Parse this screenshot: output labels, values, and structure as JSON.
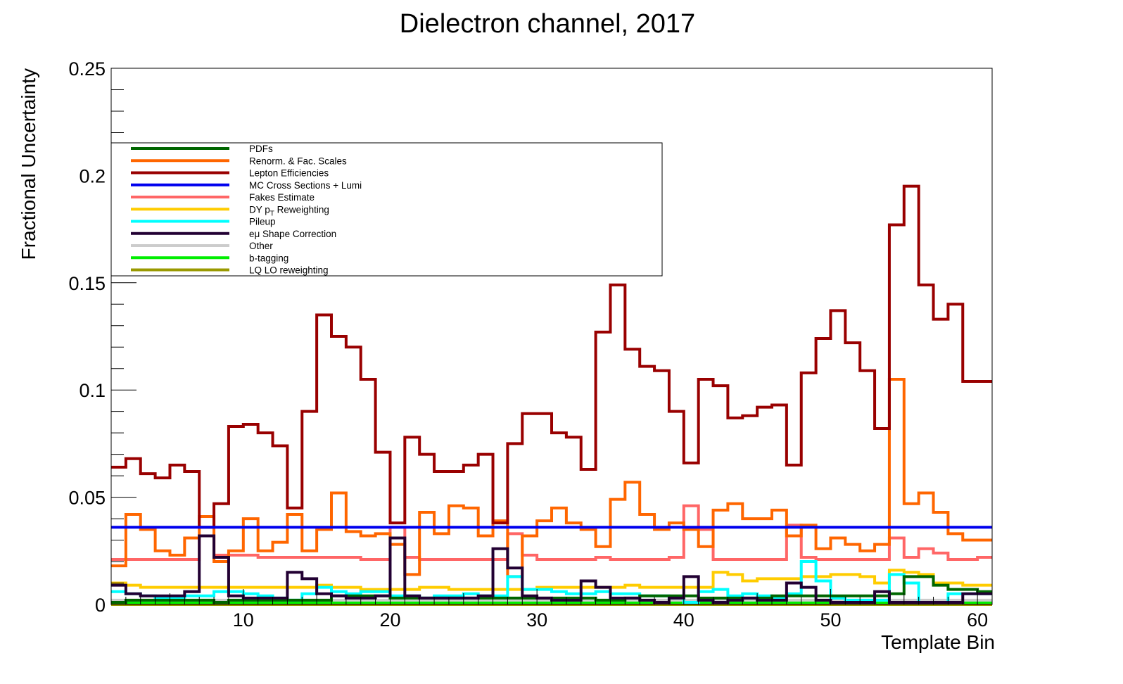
{
  "chart_data": {
    "type": "line",
    "style": "step",
    "title": "Dielectron channel, 2017",
    "xlabel": "Template Bin",
    "ylabel": "Fractional Uncertainty",
    "xlim": [
      1,
      61
    ],
    "ylim": [
      0,
      0.25
    ],
    "xticks": [
      10,
      20,
      30,
      40,
      50,
      60
    ],
    "xtick_labels": [
      "10",
      "20",
      "30",
      "40",
      "50",
      "60"
    ],
    "yticks": [
      0,
      0.05,
      0.1,
      0.15,
      0.2,
      0.25
    ],
    "ytick_labels": [
      "0",
      "0.05",
      "0.1",
      "0.15",
      "0.2",
      "0.25"
    ],
    "grid": false,
    "legend_position": "upper-left",
    "series": [
      {
        "name": "PDFs",
        "color": "#006600",
        "values": [
          0.001,
          0.002,
          0.002,
          0.002,
          0.002,
          0.002,
          0.002,
          0.001,
          0.002,
          0.002,
          0.002,
          0.002,
          0.002,
          0.002,
          0.002,
          0.004,
          0.004,
          0.004,
          0.004,
          0.003,
          0.003,
          0.003,
          0.003,
          0.003,
          0.003,
          0.003,
          0.003,
          0.003,
          0.003,
          0.003,
          0.003,
          0.003,
          0.003,
          0.002,
          0.002,
          0.003,
          0.004,
          0.004,
          0.004,
          0.004,
          0.003,
          0.003,
          0.003,
          0.003,
          0.003,
          0.004,
          0.004,
          0.004,
          0.004,
          0.004,
          0.004,
          0.004,
          0.004,
          0.005,
          0.013,
          0.013,
          0.009,
          0.007,
          0.007,
          0.006
        ]
      },
      {
        "name": "Renorm. & Fac. Scales",
        "color": "#ff6600",
        "values": [
          0.018,
          0.042,
          0.035,
          0.025,
          0.023,
          0.031,
          0.041,
          0.02,
          0.025,
          0.04,
          0.025,
          0.029,
          0.042,
          0.025,
          0.035,
          0.052,
          0.034,
          0.032,
          0.033,
          0.028,
          0.014,
          0.043,
          0.033,
          0.046,
          0.045,
          0.032,
          0.039,
          0.013,
          0.032,
          0.039,
          0.045,
          0.038,
          0.035,
          0.027,
          0.049,
          0.057,
          0.042,
          0.035,
          0.038,
          0.035,
          0.027,
          0.044,
          0.047,
          0.04,
          0.04,
          0.044,
          0.032,
          0.037,
          0.026,
          0.031,
          0.028,
          0.025,
          0.028,
          0.105,
          0.047,
          0.052,
          0.043,
          0.033,
          0.03,
          0.03
        ]
      },
      {
        "name": "Lepton Efficiencies",
        "color": "#990000",
        "values": [
          0.064,
          0.068,
          0.061,
          0.059,
          0.065,
          0.062,
          0.036,
          0.047,
          0.083,
          0.084,
          0.08,
          0.074,
          0.045,
          0.09,
          0.135,
          0.125,
          0.12,
          0.105,
          0.071,
          0.038,
          0.078,
          0.07,
          0.062,
          0.062,
          0.065,
          0.07,
          0.038,
          0.075,
          0.089,
          0.089,
          0.08,
          0.078,
          0.063,
          0.127,
          0.149,
          0.119,
          0.111,
          0.109,
          0.09,
          0.066,
          0.105,
          0.102,
          0.087,
          0.088,
          0.092,
          0.093,
          0.065,
          0.108,
          0.124,
          0.137,
          0.122,
          0.109,
          0.082,
          0.177,
          0.195,
          0.149,
          0.133,
          0.14,
          0.104,
          0.104
        ]
      },
      {
        "name": "MC Cross Sections + Lumi",
        "color": "#0000ee",
        "values": [
          0.036,
          0.036,
          0.036,
          0.036,
          0.036,
          0.036,
          0.036,
          0.036,
          0.036,
          0.036,
          0.036,
          0.036,
          0.036,
          0.036,
          0.036,
          0.036,
          0.036,
          0.036,
          0.036,
          0.036,
          0.036,
          0.036,
          0.036,
          0.036,
          0.036,
          0.036,
          0.036,
          0.036,
          0.036,
          0.036,
          0.036,
          0.036,
          0.036,
          0.036,
          0.036,
          0.036,
          0.036,
          0.036,
          0.036,
          0.036,
          0.036,
          0.036,
          0.036,
          0.036,
          0.036,
          0.036,
          0.036,
          0.036,
          0.036,
          0.036,
          0.036,
          0.036,
          0.036,
          0.036,
          0.036,
          0.036,
          0.036,
          0.036,
          0.036,
          0.036
        ]
      },
      {
        "name": "Fakes Estimate",
        "color": "#ff6666",
        "values": [
          0.021,
          0.021,
          0.021,
          0.021,
          0.021,
          0.021,
          0.032,
          0.023,
          0.023,
          0.023,
          0.022,
          0.022,
          0.022,
          0.022,
          0.022,
          0.022,
          0.022,
          0.021,
          0.021,
          0.036,
          0.022,
          0.021,
          0.021,
          0.021,
          0.021,
          0.021,
          0.021,
          0.033,
          0.023,
          0.021,
          0.021,
          0.021,
          0.021,
          0.022,
          0.021,
          0.021,
          0.021,
          0.021,
          0.022,
          0.046,
          0.035,
          0.021,
          0.021,
          0.021,
          0.021,
          0.021,
          0.037,
          0.022,
          0.021,
          0.021,
          0.021,
          0.021,
          0.021,
          0.031,
          0.022,
          0.026,
          0.024,
          0.021,
          0.021,
          0.022
        ]
      },
      {
        "name": "DY p_T Reweighting",
        "color": "#ffcc00",
        "values": [
          0.01,
          0.009,
          0.008,
          0.008,
          0.008,
          0.008,
          0.008,
          0.008,
          0.008,
          0.008,
          0.008,
          0.008,
          0.008,
          0.008,
          0.009,
          0.008,
          0.008,
          0.007,
          0.007,
          0.007,
          0.007,
          0.008,
          0.008,
          0.007,
          0.007,
          0.007,
          0.007,
          0.007,
          0.007,
          0.008,
          0.008,
          0.008,
          0.008,
          0.008,
          0.008,
          0.009,
          0.008,
          0.008,
          0.008,
          0.008,
          0.008,
          0.015,
          0.014,
          0.011,
          0.012,
          0.012,
          0.012,
          0.013,
          0.013,
          0.014,
          0.014,
          0.013,
          0.01,
          0.016,
          0.015,
          0.014,
          0.01,
          0.01,
          0.009,
          0.009
        ]
      },
      {
        "name": "Pileup",
        "color": "#00ffff",
        "values": [
          0.006,
          0.005,
          0.004,
          0.003,
          0.003,
          0.004,
          0.004,
          0.006,
          0.006,
          0.005,
          0.004,
          0.003,
          0.002,
          0.005,
          0.008,
          0.006,
          0.005,
          0.006,
          0.006,
          0.004,
          0.004,
          0.003,
          0.004,
          0.004,
          0.005,
          0.004,
          0.004,
          0.013,
          0.007,
          0.007,
          0.006,
          0.005,
          0.005,
          0.006,
          0.005,
          0.005,
          0.004,
          0.004,
          0.003,
          0.001,
          0.006,
          0.007,
          0.004,
          0.005,
          0.004,
          0.003,
          0.005,
          0.02,
          0.011,
          0.003,
          0.002,
          0.002,
          0.002,
          0.014,
          0.01,
          0.001,
          0.001,
          0.005,
          0.005,
          0.005
        ]
      },
      {
        "name": "eμ Shape Correction",
        "color": "#220033",
        "values": [
          0.009,
          0.005,
          0.004,
          0.004,
          0.004,
          0.006,
          0.032,
          0.022,
          0.004,
          0.003,
          0.003,
          0.003,
          0.015,
          0.012,
          0.005,
          0.004,
          0.003,
          0.003,
          0.004,
          0.031,
          0.004,
          0.003,
          0.003,
          0.003,
          0.003,
          0.004,
          0.026,
          0.017,
          0.004,
          0.003,
          0.002,
          0.002,
          0.011,
          0.008,
          0.003,
          0.003,
          0.002,
          0.001,
          0.003,
          0.013,
          0.002,
          0.001,
          0.002,
          0.003,
          0.002,
          0.002,
          0.01,
          0.008,
          0.002,
          0.001,
          0.001,
          0.001,
          0.006,
          0.001,
          0.001,
          0.001,
          0.001,
          0.001,
          0.005,
          0.005
        ]
      },
      {
        "name": "Other",
        "color": "#cccccc",
        "values": [
          0.002,
          0.002,
          0.002,
          0.002,
          0.002,
          0.002,
          0.002,
          0.002,
          0.002,
          0.002,
          0.002,
          0.002,
          0.002,
          0.002,
          0.002,
          0.002,
          0.002,
          0.002,
          0.002,
          0.002,
          0.002,
          0.002,
          0.002,
          0.002,
          0.002,
          0.002,
          0.002,
          0.002,
          0.002,
          0.002,
          0.002,
          0.002,
          0.002,
          0.002,
          0.002,
          0.002,
          0.002,
          0.002,
          0.002,
          0.002,
          0.002,
          0.002,
          0.002,
          0.002,
          0.002,
          0.002,
          0.002,
          0.002,
          0.002,
          0.002,
          0.002,
          0.002,
          0.002,
          0.002,
          0.002,
          0.002,
          0.002,
          0.002,
          0.002,
          0.002
        ]
      },
      {
        "name": "b-tagging",
        "color": "#00ee00",
        "values": [
          0.001,
          0.001,
          0.001,
          0.001,
          0.001,
          0.001,
          0.001,
          0.001,
          0.001,
          0.001,
          0.001,
          0.001,
          0.001,
          0.001,
          0.001,
          0.001,
          0.001,
          0.001,
          0.001,
          0.001,
          0.001,
          0.001,
          0.001,
          0.001,
          0.001,
          0.001,
          0.001,
          0.001,
          0.001,
          0.001,
          0.001,
          0.001,
          0.001,
          0.001,
          0.001,
          0.001,
          0.001,
          0.001,
          0.001,
          0.001,
          0.001,
          0.001,
          0.001,
          0.001,
          0.001,
          0.001,
          0.001,
          0.001,
          0.001,
          0.001,
          0.001,
          0.001,
          0.001,
          0.001,
          0.001,
          0.001,
          0.001,
          0.001,
          0.001,
          0.001
        ]
      },
      {
        "name": "LQ LO reweighting",
        "color": "#999900",
        "values": [
          0,
          0,
          0,
          0,
          0,
          0,
          0,
          0,
          0,
          0,
          0,
          0,
          0,
          0,
          0,
          0,
          0,
          0,
          0,
          0,
          0,
          0,
          0,
          0,
          0,
          0,
          0,
          0,
          0,
          0,
          0,
          0,
          0,
          0,
          0,
          0,
          0,
          0,
          0,
          0,
          0,
          0,
          0,
          0,
          0,
          0,
          0,
          0,
          0,
          0,
          0,
          0,
          0,
          0,
          0,
          0,
          0,
          0,
          0,
          0
        ]
      }
    ],
    "legend": [
      {
        "label": "PDFs",
        "color": "#006600"
      },
      {
        "label": "Renorm. & Fac. Scales",
        "color": "#ff6600"
      },
      {
        "label": "Lepton Efficiencies",
        "color": "#990000"
      },
      {
        "label": "MC Cross Sections + Lumi",
        "color": "#0000ee"
      },
      {
        "label": "Fakes Estimate",
        "color": "#ff6666"
      },
      {
        "label": "DY p",
        "sub": "T",
        "label_after": " Reweighting",
        "color": "#ffcc00"
      },
      {
        "label": "Pileup",
        "color": "#00ffff"
      },
      {
        "label": "eμ Shape Correction",
        "color": "#220033"
      },
      {
        "label": "Other",
        "color": "#cccccc"
      },
      {
        "label": "b-tagging",
        "color": "#00ee00"
      },
      {
        "label": "LQ LO reweighting",
        "color": "#999900"
      }
    ]
  }
}
